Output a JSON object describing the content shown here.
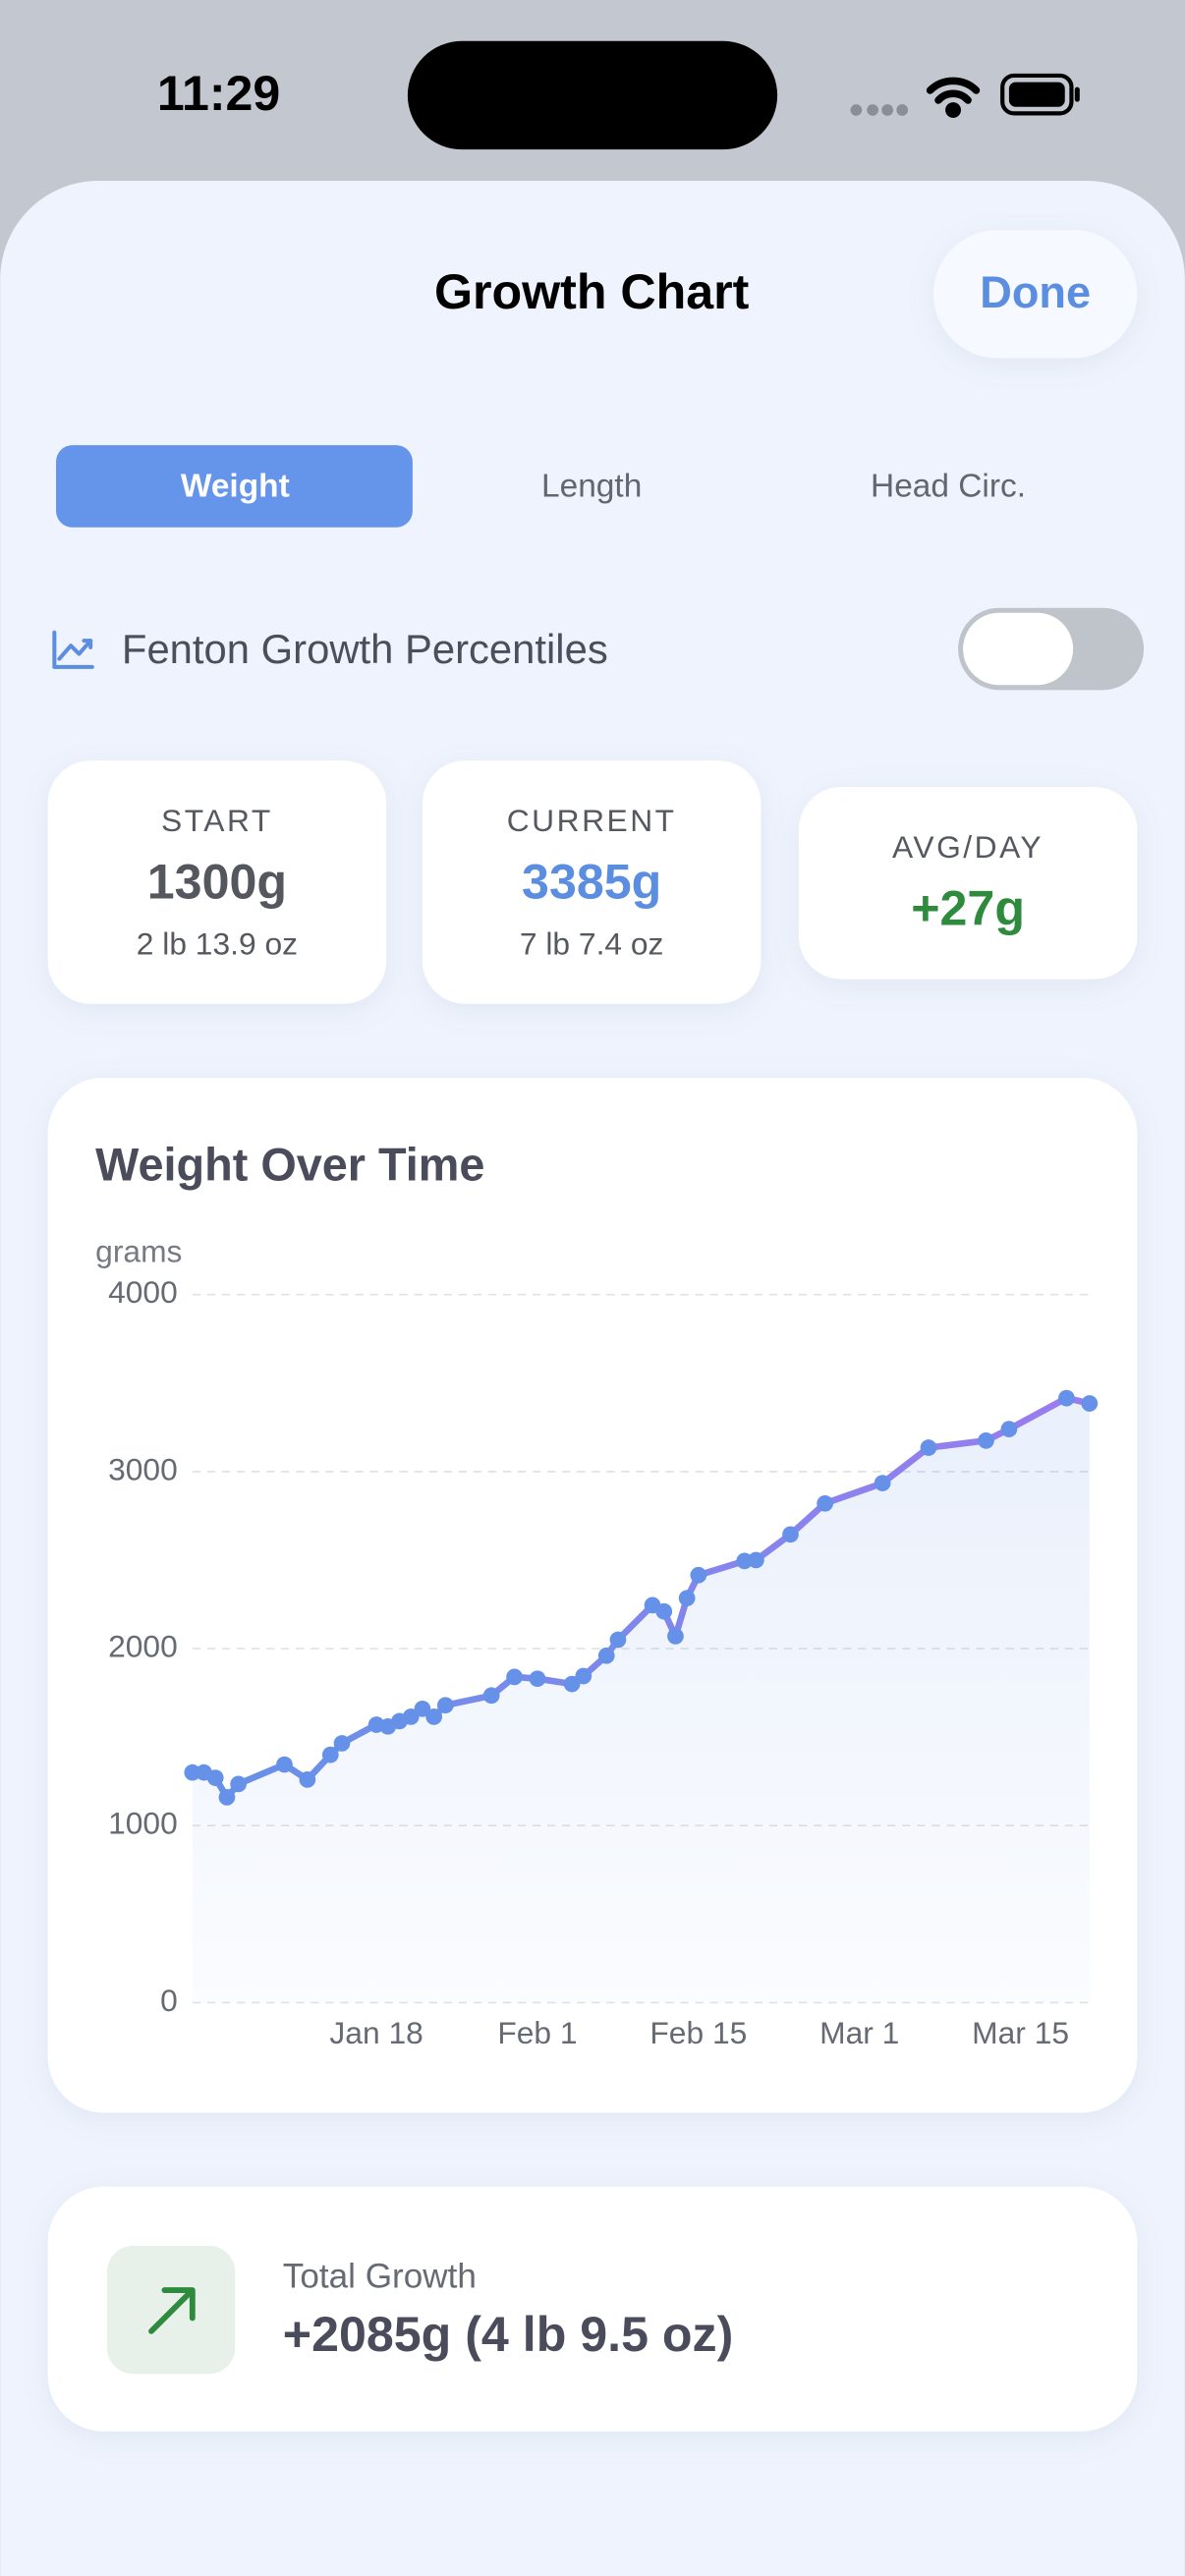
{
  "status": {
    "time": "11:29"
  },
  "header": {
    "title": "Growth Chart",
    "done": "Done"
  },
  "tabs": [
    "Weight",
    "Length",
    "Head Circ."
  ],
  "toggle": {
    "label": "Fenton Growth Percentiles"
  },
  "stats": [
    {
      "label": "START",
      "value": "1300g",
      "sub": "2 lb 13.9 oz"
    },
    {
      "label": "CURRENT",
      "value": "3385g",
      "sub": "7 lb 7.4 oz"
    },
    {
      "label": "AVG/DAY",
      "value": "+27g"
    }
  ],
  "chart_data": {
    "type": "line",
    "title": "Weight Over Time",
    "y_label": "grams",
    "x": [
      2,
      3,
      4,
      5,
      6,
      10,
      12,
      14,
      15,
      18,
      19,
      20,
      21,
      22,
      23,
      24,
      28,
      30,
      32,
      35,
      36,
      38,
      39,
      42,
      43,
      44,
      45,
      46,
      50,
      51,
      54,
      57,
      62,
      66,
      71,
      73,
      78,
      80
    ],
    "series": [
      {
        "color": "#6592e8",
        "end_color": "#9b7cf0",
        "values": [
          1300,
          1300,
          1270,
          1160,
          1235,
          1345,
          1260,
          1400,
          1465,
          1570,
          1560,
          1590,
          1615,
          1660,
          1615,
          1680,
          1735,
          1840,
          1830,
          1800,
          1845,
          1960,
          2050,
          2245,
          2210,
          2070,
          2285,
          2415,
          2495,
          2500,
          2645,
          2820,
          2935,
          3135,
          3175,
          3240,
          3415,
          3385
        ]
      }
    ],
    "xlim": [
      2,
      80
    ],
    "xticks": [
      {
        "value": 18,
        "label": "Jan 18"
      },
      {
        "value": 32,
        "label": "Feb 1"
      },
      {
        "value": 46,
        "label": "Feb 15"
      },
      {
        "value": 60,
        "label": "Mar 1"
      },
      {
        "value": 74,
        "label": "Mar 15"
      }
    ],
    "ylim": [
      0,
      4000
    ],
    "yticks": [
      0,
      1000,
      2000,
      3000,
      4000
    ],
    "grid": true
  },
  "total": {
    "label": "Total Growth",
    "value": "+2085g (4 lb 9.5 oz)"
  }
}
